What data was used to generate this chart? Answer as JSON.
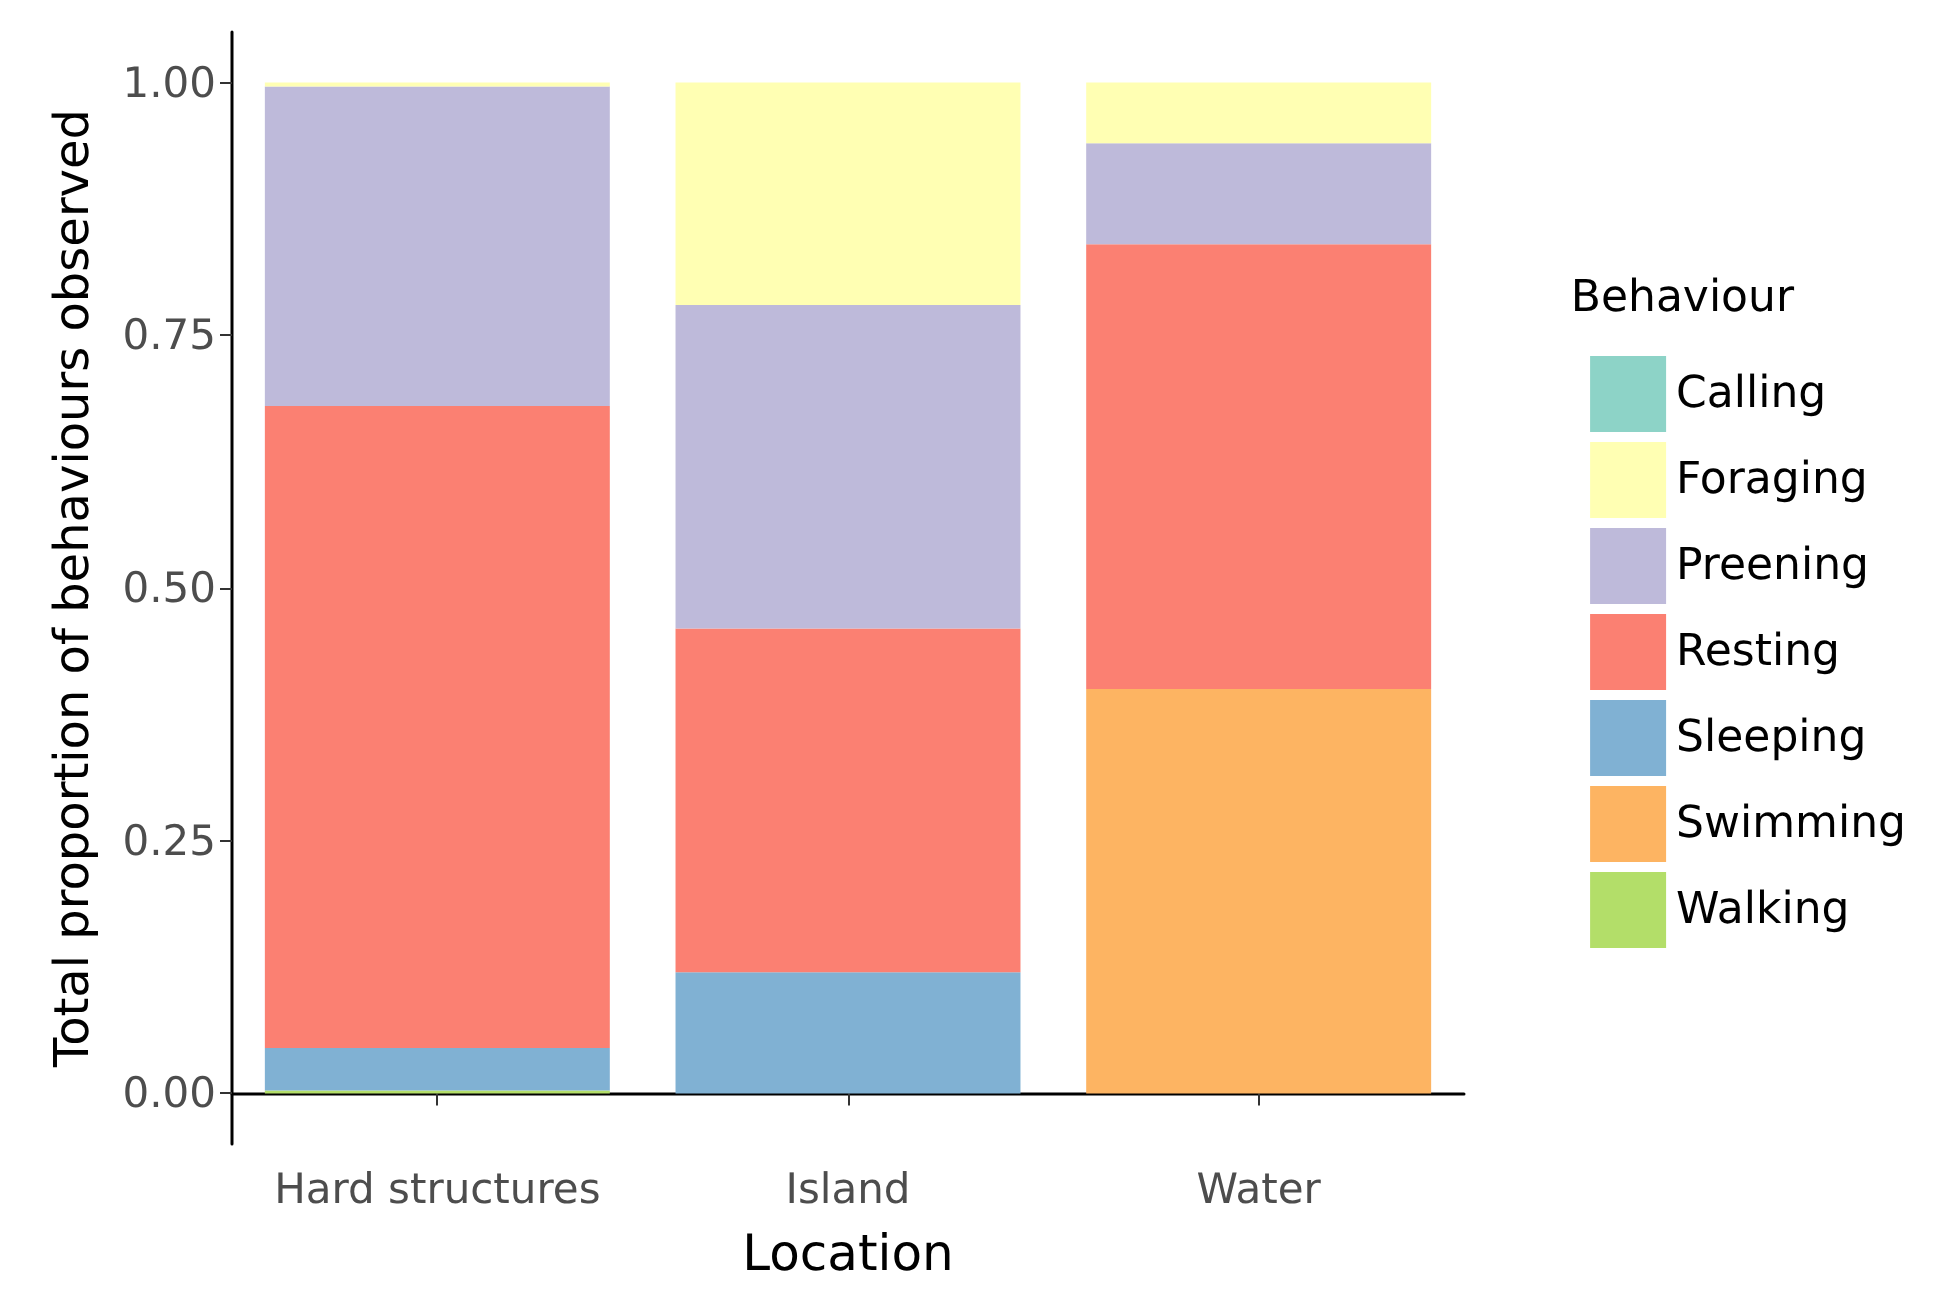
{
  "chart_data": {
    "type": "bar",
    "stacked": true,
    "xlabel": "Location",
    "ylabel": "Total proportion of behaviours observed",
    "legend_title": "Behaviour",
    "legend": "right",
    "categories": [
      "Hard structures",
      "Island",
      "Water"
    ],
    "ylim": [
      -0.05,
      1.05
    ],
    "yticks": [
      {
        "value": 0,
        "label": "0.00"
      },
      {
        "value": 0.25,
        "label": "0.25"
      },
      {
        "value": 0.5,
        "label": "0.50"
      },
      {
        "value": 0.75,
        "label": "0.75"
      },
      {
        "value": 1,
        "label": "1.00"
      }
    ],
    "grid": false,
    "series": [
      {
        "name": "Walking",
        "color": "#b3de69",
        "values": [
          0.003,
          0,
          0
        ]
      },
      {
        "name": "Swimming",
        "color": "#fdb462",
        "values": [
          0,
          0,
          0.4
        ]
      },
      {
        "name": "Sleeping",
        "color": "#80b1d3",
        "values": [
          0.042,
          0.12,
          0
        ]
      },
      {
        "name": "Resting",
        "color": "#fb8072",
        "values": [
          0.635,
          0.34,
          0.44
        ]
      },
      {
        "name": "Preening",
        "color": "#bebada",
        "values": [
          0.316,
          0.32,
          0.1
        ]
      },
      {
        "name": "Foraging",
        "color": "#ffffb3",
        "values": [
          0.004,
          0.22,
          0.06
        ]
      },
      {
        "name": "Calling",
        "color": "#8dd3c7",
        "values": [
          0,
          0,
          0
        ]
      }
    ]
  }
}
